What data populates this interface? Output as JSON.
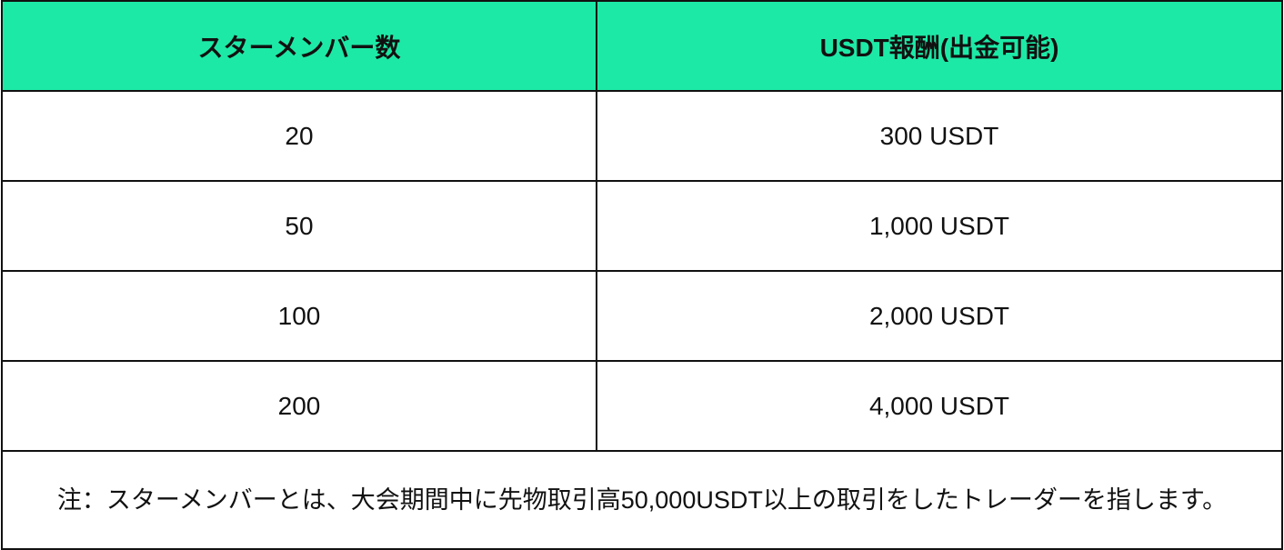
{
  "header": {
    "col1": "スターメンバー数",
    "col2": "USDT報酬(出金可能)"
  },
  "header_color": "#1de9a6",
  "rows": [
    {
      "members": "20",
      "reward": "300 USDT"
    },
    {
      "members": "50",
      "reward": "1,000 USDT"
    },
    {
      "members": "100",
      "reward": "2,000 USDT"
    },
    {
      "members": "200",
      "reward": "4,000 USDT"
    }
  ],
  "note": "注：スターメンバーとは、大会期間中に先物取引高50,000USDT以上の取引をしたトレーダーを指します。"
}
